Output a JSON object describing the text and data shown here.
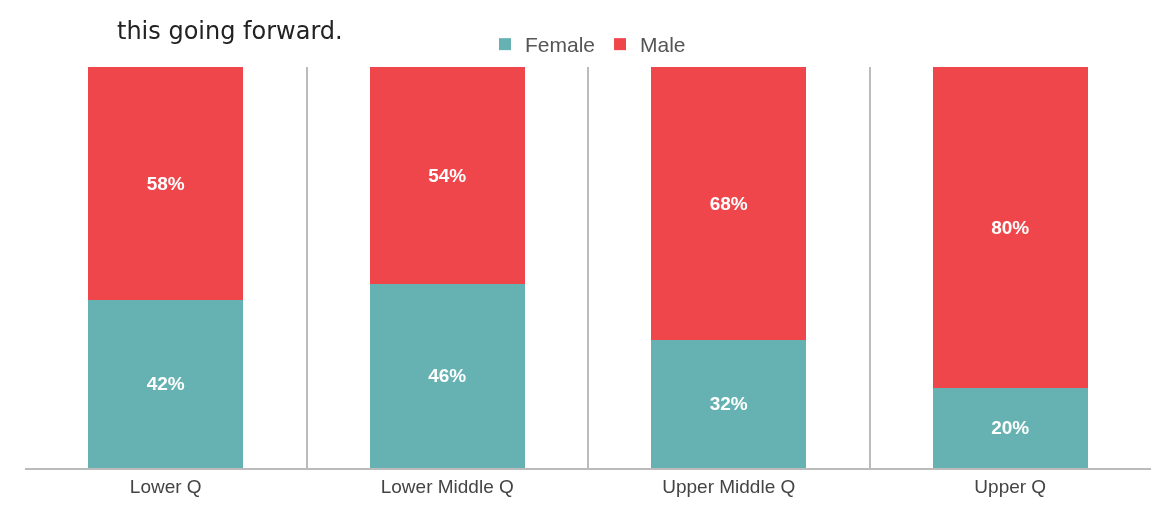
{
  "chart_data": {
    "type": "bar",
    "stacked": true,
    "categories": [
      "Lower Q",
      "Lower Middle Q",
      "Upper Middle Q",
      "Upper Q"
    ],
    "series": [
      {
        "name": "Female",
        "color": "#66b2b2",
        "values": [
          42,
          46,
          32,
          20
        ],
        "value_labels": [
          "42%",
          "46%",
          "32%",
          "20%"
        ]
      },
      {
        "name": "Male",
        "color": "#ef464c",
        "values": [
          58,
          54,
          68,
          80
        ],
        "value_labels": [
          "58%",
          "54%",
          "68%",
          "80%"
        ]
      }
    ],
    "grid": "x",
    "legend": "top",
    "annotations": [
      "this going forward."
    ]
  }
}
